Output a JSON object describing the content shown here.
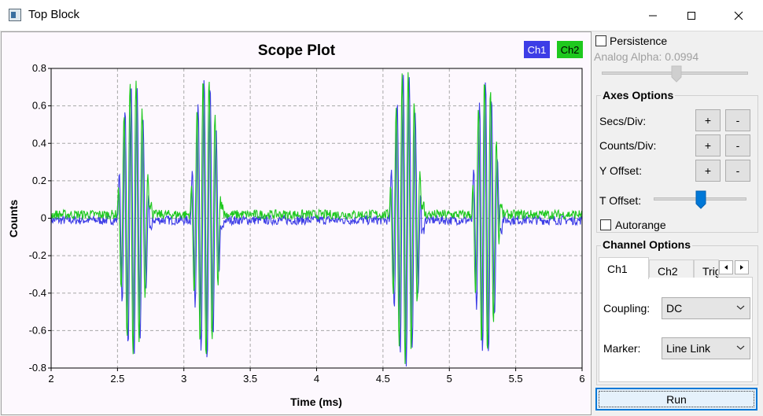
{
  "window": {
    "title": "Top Block"
  },
  "chart_data": {
    "type": "line",
    "title": "Scope Plot",
    "xlabel": "Time (ms)",
    "ylabel": "Counts",
    "xlim": [
      2,
      6
    ],
    "ylim": [
      -0.8,
      0.8
    ],
    "grid": true,
    "legend": "top-right",
    "x_ticks": [
      "2",
      "2.5",
      "3",
      "3.5",
      "4",
      "4.5",
      "5",
      "5.5",
      "6"
    ],
    "y_ticks": [
      "0.8",
      "0.6",
      "0.4",
      "0.2",
      "0",
      "-0.2",
      "-0.4",
      "-0.6",
      "-0.8"
    ],
    "bursts": [
      {
        "start": 2.5,
        "end": 2.74,
        "peak": 0.74
      },
      {
        "start": 3.05,
        "end": 3.28,
        "peak": 0.76
      },
      {
        "start": 4.55,
        "end": 4.79,
        "peak": 0.79
      },
      {
        "start": 5.17,
        "end": 5.38,
        "peak": 0.74
      }
    ],
    "series": [
      {
        "name": "Ch1",
        "color": "#3d3de6",
        "baseline": -0.01
      },
      {
        "name": "Ch2",
        "color": "#1ec81e",
        "baseline": 0.02
      }
    ]
  },
  "panel": {
    "persistence_label": "Persistence",
    "analog_alpha_label": "Analog Alpha: 0.0994",
    "axes_options_title": "Axes Options",
    "secs_div_label": "Secs/Div:",
    "counts_div_label": "Counts/Div:",
    "y_offset_label": "Y Offset:",
    "t_offset_label": "T Offset:",
    "plus": "+",
    "minus": "-",
    "autorange_label": "Autorange",
    "channel_options_title": "Channel Options",
    "tabs": [
      "Ch1",
      "Ch2",
      "Trig"
    ],
    "coupling_label": "Coupling:",
    "coupling_value": "DC",
    "marker_label": "Marker:",
    "marker_value": "Line Link",
    "run_label": "Run"
  }
}
